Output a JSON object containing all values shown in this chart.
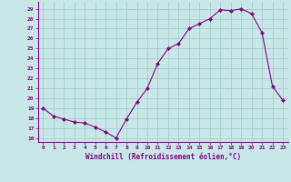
{
  "x": [
    0,
    1,
    2,
    3,
    4,
    5,
    6,
    7,
    8,
    9,
    10,
    11,
    12,
    13,
    14,
    15,
    16,
    17,
    18,
    19,
    20,
    21,
    22,
    23
  ],
  "y": [
    19,
    18.2,
    17.9,
    17.6,
    17.5,
    17.1,
    16.6,
    16.0,
    17.9,
    19.6,
    21.0,
    23.5,
    25.0,
    25.5,
    27.0,
    27.5,
    28.0,
    28.9,
    28.8,
    29.0,
    28.5,
    26.6,
    21.2,
    19.8
  ],
  "line_color": "#880088",
  "marker": "D",
  "marker_size": 2.0,
  "bg_color": "#c8e8e8",
  "grid_color": "#aacccc",
  "xlabel": "Windchill (Refroidissement éolien,°C)",
  "ylabel_ticks": [
    16,
    17,
    18,
    19,
    20,
    21,
    22,
    23,
    24,
    25,
    26,
    27,
    28,
    29
  ],
  "ylim": [
    15.6,
    29.7
  ],
  "xlim": [
    -0.5,
    23.5
  ]
}
